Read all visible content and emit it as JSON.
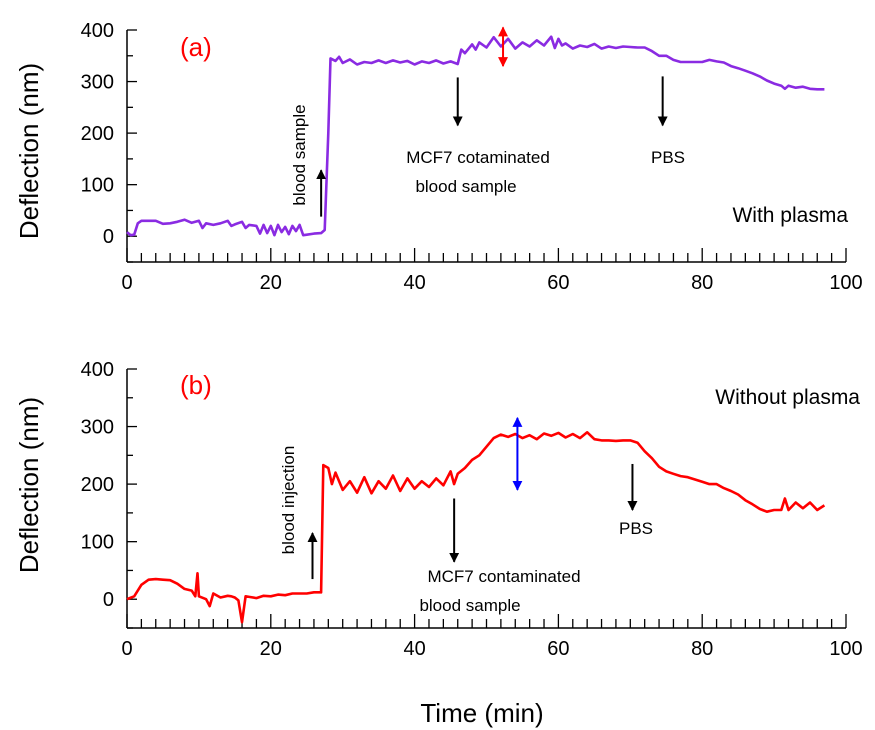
{
  "colors": {
    "panel_a_series": "#8a2be2",
    "panel_b_series": "#ff0000",
    "panel_label": "#ff0000",
    "arrow_a_double": "#ff0000",
    "arrow_b_double": "#0000ff",
    "annotation_arrows": "#000000"
  },
  "xlabel": "Time (min)",
  "chart_data": [
    {
      "type": "line",
      "panel_label": "(a)",
      "condition_label": "With plasma",
      "ylabel": "Deflection (nm)",
      "xlim": [
        0,
        100
      ],
      "ylim": [
        -50,
        400
      ],
      "x_ticks": [
        0,
        20,
        40,
        60,
        80,
        100
      ],
      "y_ticks": [
        0,
        100,
        200,
        300,
        400
      ],
      "grid": false,
      "annotations": [
        {
          "text": "blood sample",
          "orientation": "vertical"
        },
        {
          "text": "MCF7 cotaminated"
        },
        {
          "text": "blood sample"
        },
        {
          "text": "PBS"
        }
      ],
      "series": [
        {
          "points": [
            [
              0,
              8
            ],
            [
              0.5,
              2
            ],
            [
              1,
              3
            ],
            [
              1.5,
              25
            ],
            [
              2,
              30
            ],
            [
              3,
              30
            ],
            [
              4,
              30
            ],
            [
              5,
              24
            ],
            [
              6,
              25
            ],
            [
              7,
              28
            ],
            [
              8,
              32
            ],
            [
              9,
              26
            ],
            [
              10,
              30
            ],
            [
              10.5,
              16
            ],
            [
              11,
              25
            ],
            [
              12,
              22
            ],
            [
              13,
              25
            ],
            [
              14,
              30
            ],
            [
              14.5,
              20
            ],
            [
              15,
              23
            ],
            [
              16,
              28
            ],
            [
              16.5,
              16
            ],
            [
              17,
              22
            ],
            [
              18,
              20
            ],
            [
              18.5,
              5
            ],
            [
              19,
              22
            ],
            [
              19.5,
              6
            ],
            [
              20,
              20
            ],
            [
              20.5,
              2
            ],
            [
              21,
              22
            ],
            [
              21.5,
              8
            ],
            [
              22,
              18
            ],
            [
              22.5,
              4
            ],
            [
              23,
              20
            ],
            [
              23.5,
              10
            ],
            [
              24,
              22
            ],
            [
              24.5,
              2
            ],
            [
              25,
              3
            ],
            [
              26,
              5
            ],
            [
              27,
              6
            ],
            [
              27.5,
              12
            ],
            [
              28,
              200
            ],
            [
              28.3,
              345
            ],
            [
              29,
              340
            ],
            [
              29.5,
              348
            ],
            [
              30,
              336
            ],
            [
              31,
              343
            ],
            [
              32,
              333
            ],
            [
              33,
              338
            ],
            [
              34,
              336
            ],
            [
              35,
              341
            ],
            [
              36,
              336
            ],
            [
              37,
              341
            ],
            [
              38,
              337
            ],
            [
              39,
              340
            ],
            [
              40,
              333
            ],
            [
              41,
              339
            ],
            [
              42,
              336
            ],
            [
              43,
              341
            ],
            [
              44,
              335
            ],
            [
              45,
              339
            ],
            [
              46,
              334
            ],
            [
              46.5,
              362
            ],
            [
              47,
              355
            ],
            [
              48,
              372
            ],
            [
              48.5,
              362
            ],
            [
              49,
              376
            ],
            [
              50,
              366
            ],
            [
              51,
              386
            ],
            [
              52,
              368
            ],
            [
              53,
              383
            ],
            [
              54,
              364
            ],
            [
              55,
              376
            ],
            [
              56,
              368
            ],
            [
              57,
              380
            ],
            [
              58,
              370
            ],
            [
              59,
              387
            ],
            [
              59.5,
              365
            ],
            [
              60,
              383
            ],
            [
              60.5,
              370
            ],
            [
              61,
              374
            ],
            [
              62,
              364
            ],
            [
              63,
              370
            ],
            [
              64,
              367
            ],
            [
              65,
              373
            ],
            [
              66,
              364
            ],
            [
              67,
              368
            ],
            [
              68,
              365
            ],
            [
              69,
              368
            ],
            [
              70,
              367
            ],
            [
              71,
              366
            ],
            [
              72,
              366
            ],
            [
              73,
              359
            ],
            [
              74,
              350
            ],
            [
              75,
              350
            ],
            [
              76,
              342
            ],
            [
              77,
              338
            ],
            [
              78,
              338
            ],
            [
              79,
              338
            ],
            [
              80,
              338
            ],
            [
              81,
              342
            ],
            [
              82,
              339
            ],
            [
              83,
              337
            ],
            [
              84,
              330
            ],
            [
              85,
              326
            ],
            [
              86,
              321
            ],
            [
              87,
              316
            ],
            [
              88,
              310
            ],
            [
              89,
              302
            ],
            [
              90,
              296
            ],
            [
              91,
              292
            ],
            [
              91.5,
              286
            ],
            [
              92,
              292
            ],
            [
              93,
              288
            ],
            [
              94,
              290
            ],
            [
              95,
              286
            ],
            [
              96,
              285
            ],
            [
              97,
              285
            ]
          ]
        }
      ]
    },
    {
      "type": "line",
      "panel_label": "(b)",
      "condition_label": "Without plasma",
      "ylabel": "Deflection (nm)",
      "xlim": [
        0,
        100
      ],
      "ylim": [
        -50,
        400
      ],
      "x_ticks": [
        0,
        20,
        40,
        60,
        80,
        100
      ],
      "y_ticks": [
        0,
        100,
        200,
        300,
        400
      ],
      "grid": false,
      "annotations": [
        {
          "text": "blood injection",
          "orientation": "vertical"
        },
        {
          "text": "MCF7 contaminated"
        },
        {
          "text": "blood sample"
        },
        {
          "text": "PBS"
        }
      ],
      "series": [
        {
          "points": [
            [
              0,
              0
            ],
            [
              1,
              5
            ],
            [
              1.5,
              15
            ],
            [
              2,
              25
            ],
            [
              3,
              34
            ],
            [
              4,
              35
            ],
            [
              5,
              34
            ],
            [
              6,
              33
            ],
            [
              7,
              27
            ],
            [
              8,
              18
            ],
            [
              9,
              15
            ],
            [
              9.5,
              5
            ],
            [
              9.8,
              45
            ],
            [
              10,
              5
            ],
            [
              11,
              0
            ],
            [
              11.5,
              -12
            ],
            [
              12,
              10
            ],
            [
              13,
              3
            ],
            [
              14,
              6
            ],
            [
              14.5,
              5
            ],
            [
              15,
              3
            ],
            [
              15.5,
              -2
            ],
            [
              16,
              -40
            ],
            [
              16.5,
              5
            ],
            [
              17,
              4
            ],
            [
              18,
              2
            ],
            [
              19,
              6
            ],
            [
              20,
              5
            ],
            [
              21,
              8
            ],
            [
              22,
              7
            ],
            [
              23,
              10
            ],
            [
              24,
              10
            ],
            [
              25,
              10
            ],
            [
              26,
              12
            ],
            [
              27,
              12
            ],
            [
              27.3,
              233
            ],
            [
              28,
              228
            ],
            [
              28.5,
              200
            ],
            [
              29,
              220
            ],
            [
              30,
              190
            ],
            [
              31,
              205
            ],
            [
              32,
              185
            ],
            [
              33,
              212
            ],
            [
              34,
              184
            ],
            [
              35,
              205
            ],
            [
              36,
              192
            ],
            [
              37,
              215
            ],
            [
              38,
              188
            ],
            [
              39,
              210
            ],
            [
              40,
              192
            ],
            [
              41,
              205
            ],
            [
              42,
              195
            ],
            [
              43,
              210
            ],
            [
              44,
              198
            ],
            [
              45,
              222
            ],
            [
              45.5,
              200
            ],
            [
              46,
              218
            ],
            [
              47,
              228
            ],
            [
              48,
              242
            ],
            [
              49,
              250
            ],
            [
              50,
              265
            ],
            [
              51,
              280
            ],
            [
              52,
              286
            ],
            [
              53,
              282
            ],
            [
              54,
              287
            ],
            [
              55,
              280
            ],
            [
              56,
              285
            ],
            [
              57,
              278
            ],
            [
              58,
              288
            ],
            [
              59,
              284
            ],
            [
              60,
              289
            ],
            [
              61,
              281
            ],
            [
              62,
              287
            ],
            [
              63,
              280
            ],
            [
              64,
              290
            ],
            [
              65,
              278
            ],
            [
              66,
              276
            ],
            [
              67,
              276
            ],
            [
              68,
              275
            ],
            [
              69,
              276
            ],
            [
              70,
              276
            ],
            [
              71,
              272
            ],
            [
              72,
              257
            ],
            [
              73,
              245
            ],
            [
              74,
              230
            ],
            [
              75,
              222
            ],
            [
              76,
              218
            ],
            [
              77,
              214
            ],
            [
              78,
              212
            ],
            [
              79,
              208
            ],
            [
              80,
              204
            ],
            [
              81,
              200
            ],
            [
              82,
              200
            ],
            [
              83,
              193
            ],
            [
              84,
              188
            ],
            [
              85,
              182
            ],
            [
              86,
              172
            ],
            [
              87,
              165
            ],
            [
              88,
              157
            ],
            [
              89,
              152
            ],
            [
              90,
              155
            ],
            [
              91,
              155
            ],
            [
              91.5,
              175
            ],
            [
              92,
              155
            ],
            [
              93,
              168
            ],
            [
              94,
              158
            ],
            [
              95,
              168
            ],
            [
              96,
              155
            ],
            [
              97,
              163
            ]
          ]
        }
      ]
    }
  ]
}
